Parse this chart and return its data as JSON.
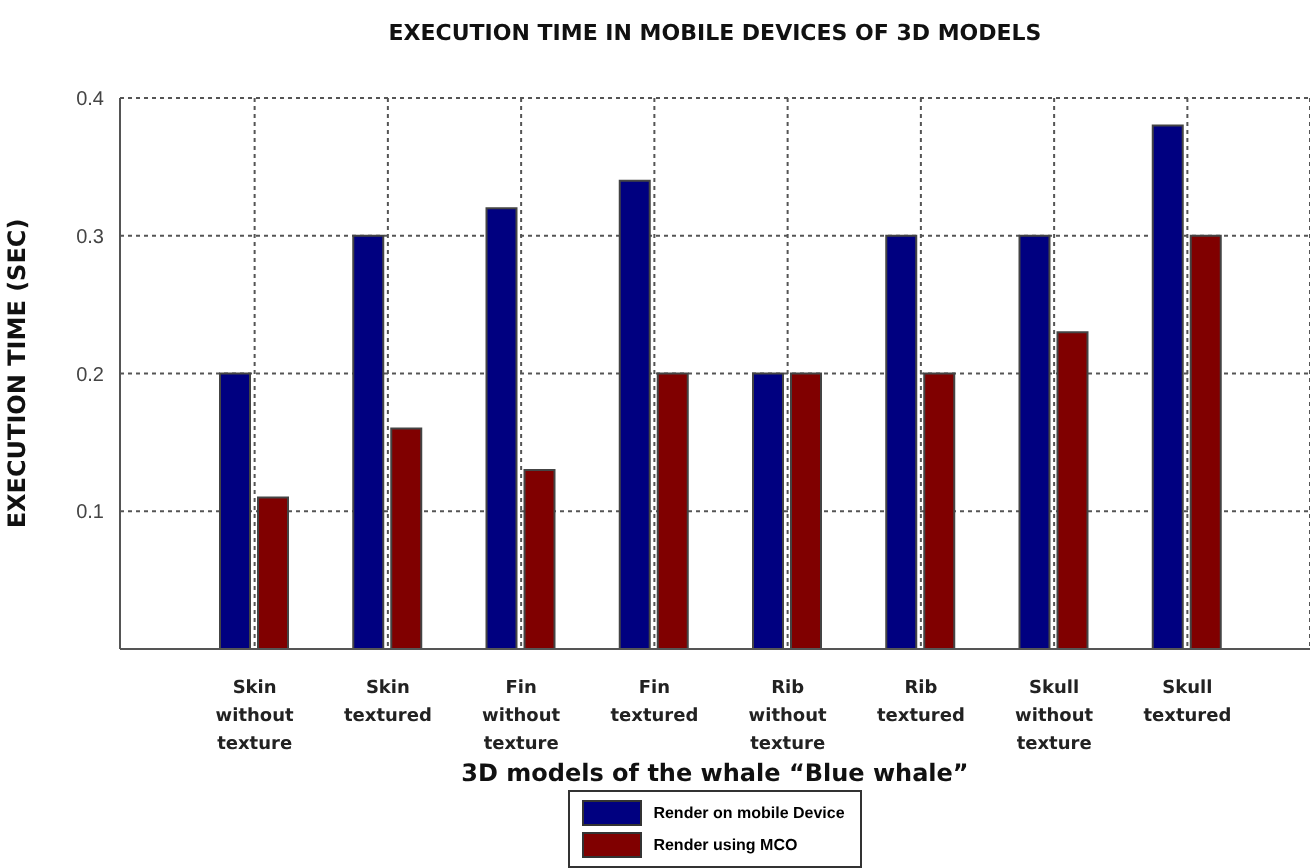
{
  "chart_data": {
    "type": "bar",
    "title": "EXECUTION TIME IN MOBILE DEVICES OF 3D MODELS",
    "xlabel": "3D models of the whale “Blue whale”",
    "ylabel": "EXECUTION TIME (SEC)",
    "categories": [
      "Skin without texture",
      "Skin textured",
      "Fin without texture",
      "Fin textured",
      "Rib without texture",
      "Rib textured",
      "Skull without texture",
      "Skull textured"
    ],
    "series": [
      {
        "name": "Render on mobile Device",
        "color": "#000080",
        "values": [
          0.2,
          0.3,
          0.32,
          0.34,
          0.2,
          0.3,
          0.3,
          0.38
        ]
      },
      {
        "name": "Render using MCO",
        "color": "#800000",
        "values": [
          0.11,
          0.16,
          0.13,
          0.2,
          0.2,
          0.2,
          0.23,
          0.3
        ]
      }
    ],
    "ylim": [
      0,
      0.4
    ],
    "yticks": [
      0.1,
      0.2,
      0.3,
      0.4
    ],
    "grid": true,
    "legend": "bottom"
  }
}
